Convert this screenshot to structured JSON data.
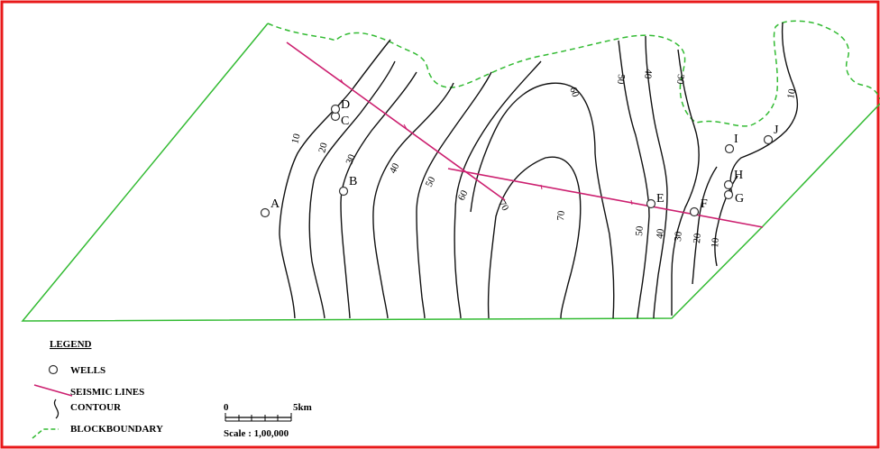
{
  "colors": {
    "frame": "#e8191a",
    "block_boundary": "#33bb33",
    "seismic": "#cc1f6f",
    "contour": "#111111"
  },
  "contour_labels": [
    "10",
    "20",
    "30",
    "40",
    "50",
    "60",
    "70",
    "70",
    "60",
    "50",
    "40",
    "30",
    "50",
    "40",
    "30",
    "20",
    "10",
    "10"
  ],
  "wells": [
    {
      "id": "A"
    },
    {
      "id": "B"
    },
    {
      "id": "C"
    },
    {
      "id": "D"
    },
    {
      "id": "E"
    },
    {
      "id": "F"
    },
    {
      "id": "G"
    },
    {
      "id": "H"
    },
    {
      "id": "I"
    },
    {
      "id": "J"
    }
  ],
  "legend": {
    "title": "LEGEND",
    "wells": "WELLS",
    "seismic": "SEISMIC LINES",
    "contour": "CONTOUR",
    "boundary": "BLOCKBOUNDARY"
  },
  "scale": {
    "zero": "0",
    "end": "5km",
    "text": "Scale : 1,00,000"
  }
}
